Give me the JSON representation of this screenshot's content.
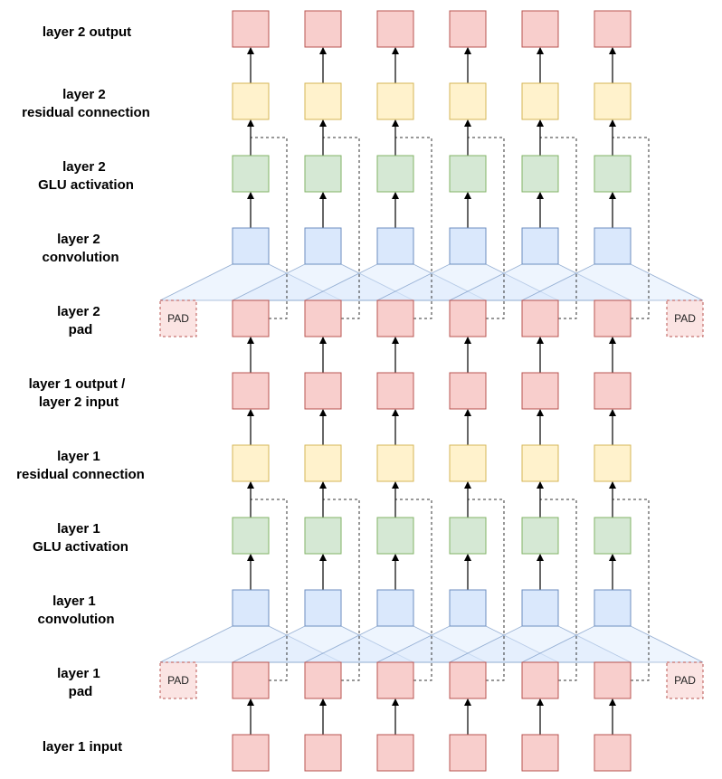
{
  "labels": {
    "layer2_output": "layer 2 output",
    "layer2_residual": [
      "layer 2",
      "residual connection"
    ],
    "layer2_glu": [
      "layer 2",
      "GLU activation"
    ],
    "layer2_conv": [
      "layer 2",
      "convolution"
    ],
    "layer2_pad": [
      "layer 2",
      "pad"
    ],
    "layer1_output": [
      "layer 1 output /",
      "layer 2 input"
    ],
    "layer1_residual": [
      "layer 1",
      "residual connection"
    ],
    "layer1_glu": [
      "layer 1",
      "GLU activation"
    ],
    "layer1_conv": [
      "layer 1",
      "convolution"
    ],
    "layer1_pad": [
      "layer 1",
      "pad"
    ],
    "layer1_input": "layer 1 input"
  },
  "pad_text": "PAD",
  "colors": {
    "io_fill": "#f8cecc",
    "io_stroke": "#b85450",
    "residual_fill": "#fff2cc",
    "residual_stroke": "#d6b656",
    "glu_fill": "#d5e8d4",
    "glu_stroke": "#82b366",
    "conv_fill": "#dae8fc",
    "conv_stroke": "#6c8ebf",
    "window_fill": "#dae8fc",
    "window_stroke": "#6c8ebf"
  }
}
